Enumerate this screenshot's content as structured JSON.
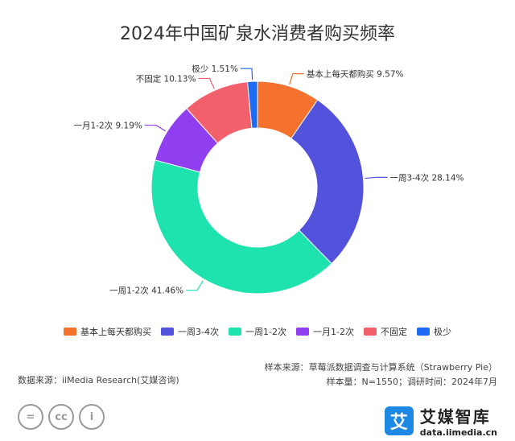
{
  "chart_data": {
    "type": "pie",
    "title": "2024年中国矿泉水消费者购买频率",
    "categories": [
      "基本上每天都购买",
      "一周3-4次",
      "一周1-2次",
      "一月1-2次",
      "不固定",
      "极少"
    ],
    "values": [
      9.57,
      28.14,
      41.46,
      9.19,
      10.13,
      1.51
    ],
    "labels": [
      "基本上每天都购买 9.57%",
      "一周3-4次 28.14%",
      "一周1-2次 41.46%",
      "一月1-2次 9.19%",
      "不固定 10.13%",
      "极少 1.51%"
    ],
    "colors": [
      "#f5722e",
      "#5252dd",
      "#1ee3ae",
      "#8f3ff0",
      "#f2606b",
      "#1c6bf2"
    ],
    "legend_position": "bottom"
  },
  "footer": {
    "source_right": "样本来源：草莓派数据调查与计算系统（Strawberry Pie）",
    "sample_info": "样本量：N=1550；调研时间：2024年7月",
    "source_left": "数据来源：iiMedia Research(艾媒咨询)"
  },
  "brand": {
    "logo_char": "艾",
    "name": "艾媒智库",
    "url": "data.iimedia.cn"
  },
  "cc_icons": [
    "=",
    "cc",
    "i"
  ]
}
